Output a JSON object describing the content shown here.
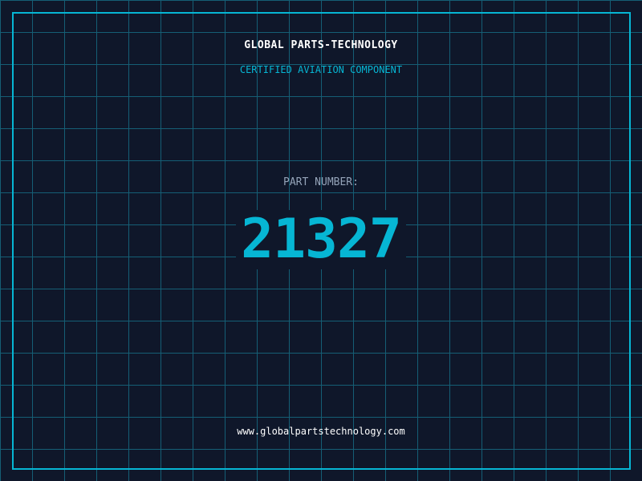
{
  "header": {
    "company": "GLOBAL PARTS-TECHNOLOGY",
    "subtitle": "CERTIFIED AVIATION COMPONENT"
  },
  "part": {
    "label": "PART NUMBER:",
    "number": "21327"
  },
  "footer": {
    "url": "www.globalpartstechnology.com"
  },
  "colors": {
    "background": "#0f172a",
    "accent": "#06b6d4",
    "grid": "#155e75"
  }
}
